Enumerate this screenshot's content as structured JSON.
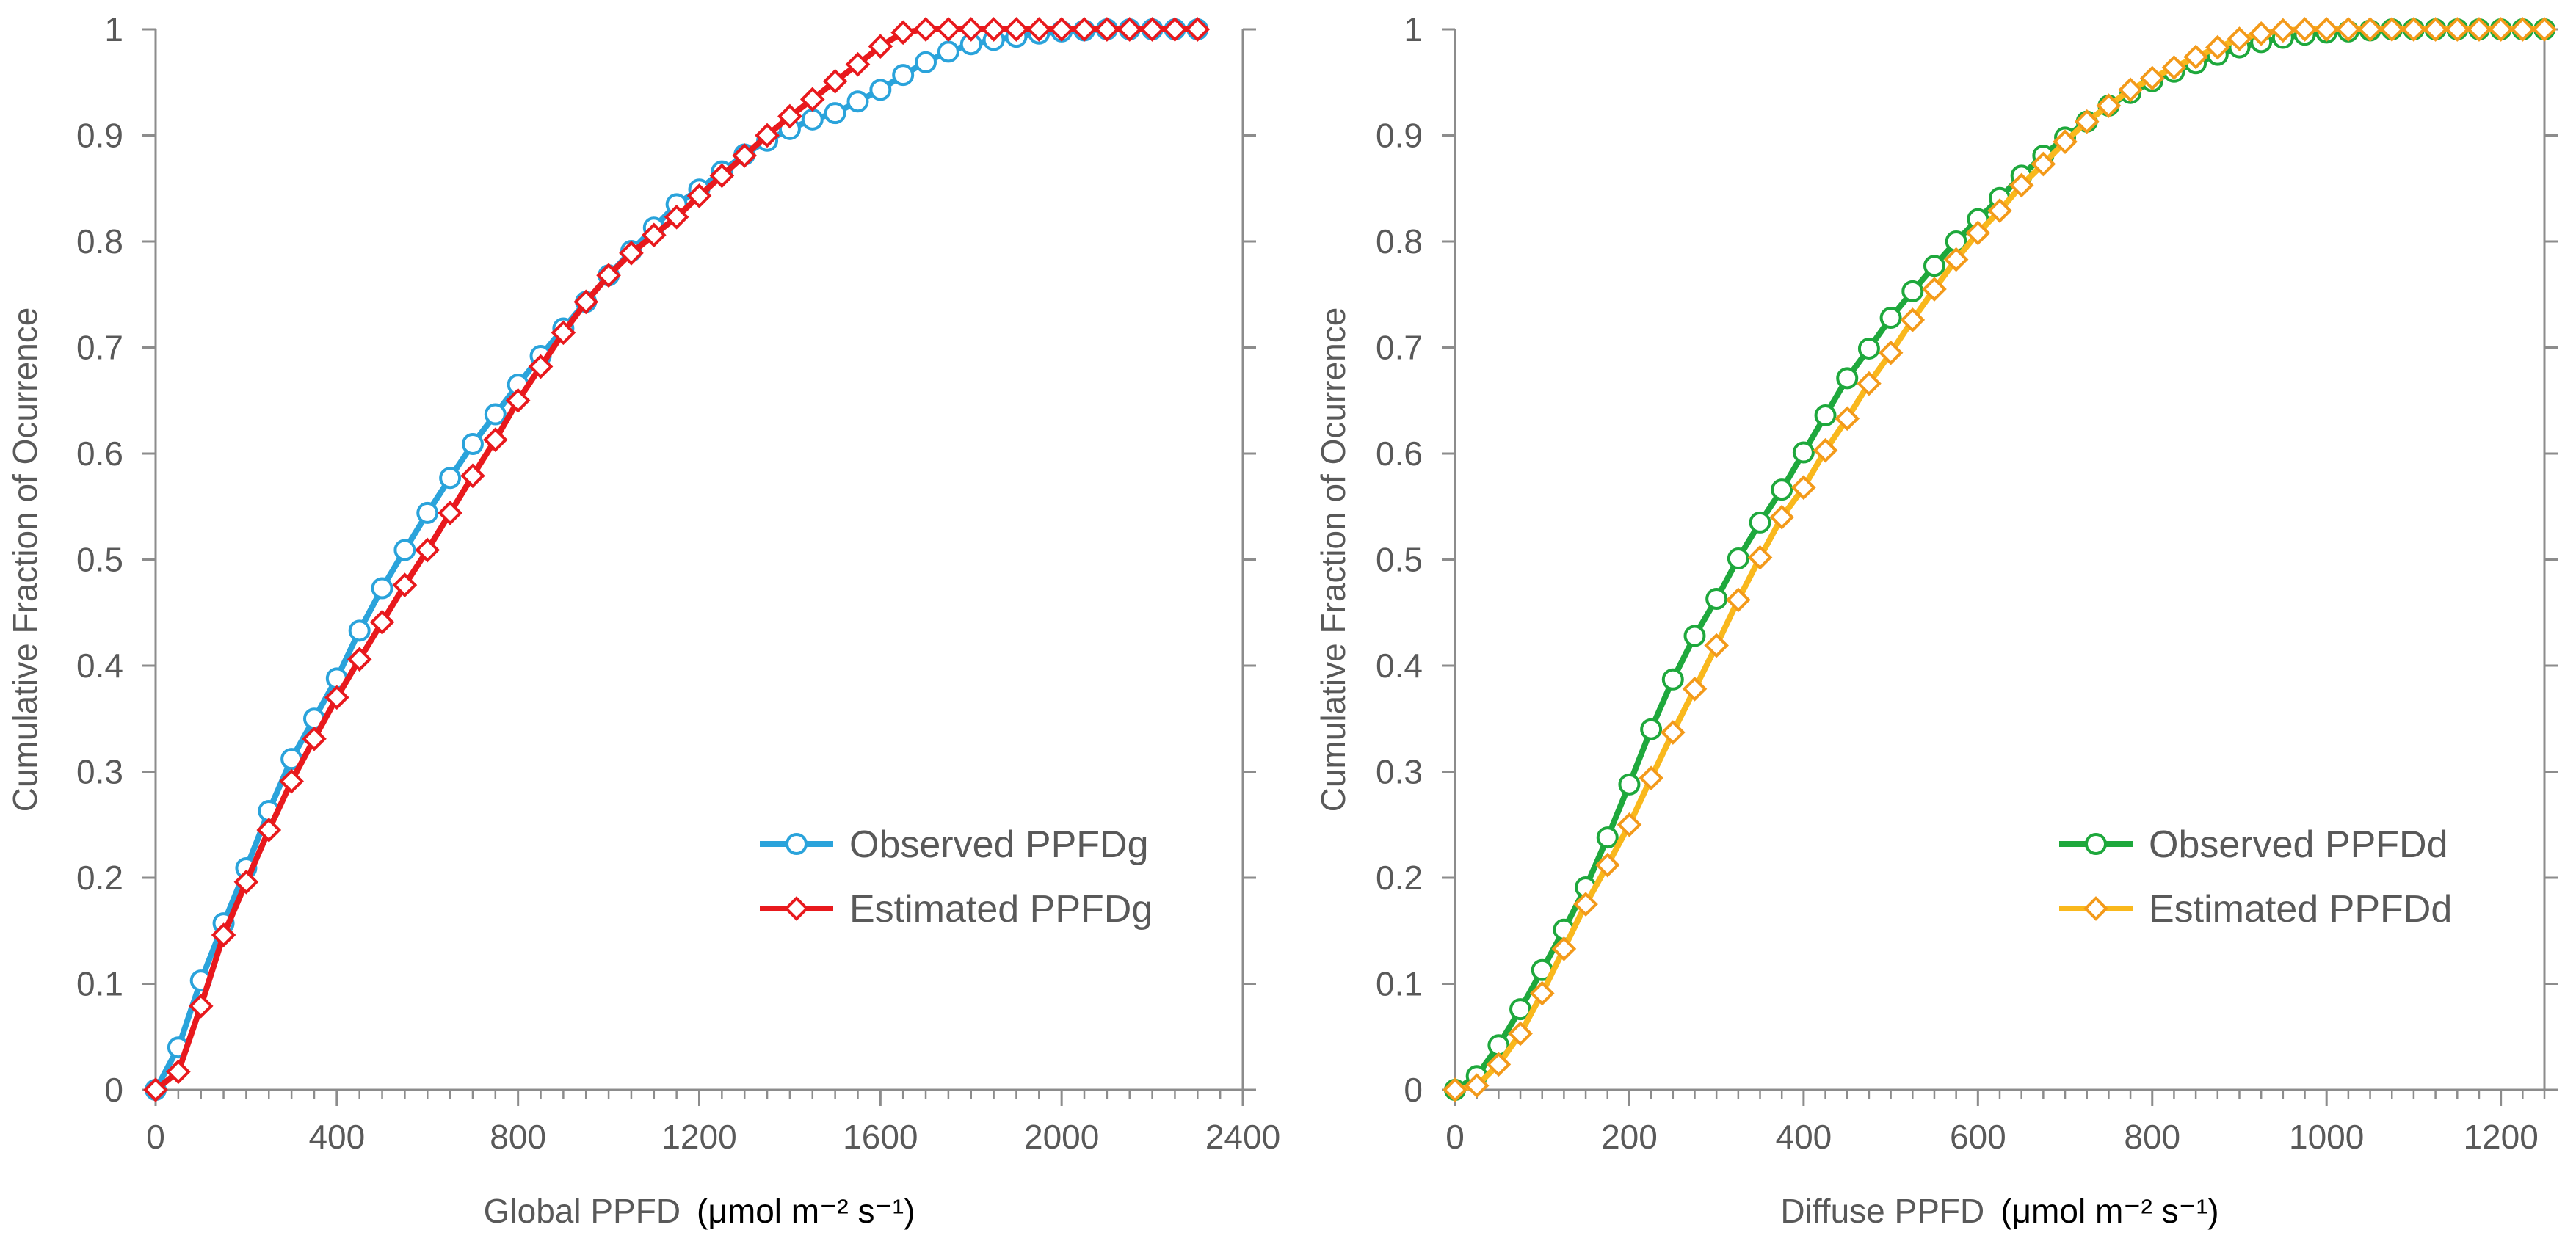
{
  "chart_data": [
    {
      "type": "line",
      "xlabel": "Global PPFD",
      "xunit": "(μmol m⁻² s⁻¹)",
      "ylabel": "Cumulative Fraction of Ocurrence",
      "xlim": [
        0,
        2400
      ],
      "ylim": [
        0,
        1
      ],
      "xticks": [
        0,
        400,
        800,
        1200,
        1600,
        2000,
        2400
      ],
      "yticks": [
        0,
        0.1,
        0.2,
        0.3,
        0.4,
        0.5,
        0.6,
        0.7,
        0.8,
        0.9,
        1
      ],
      "ytick_labels": [
        "0",
        "0.1",
        "0.2",
        "0.3",
        "0.4",
        "0.5",
        "0.6",
        "0.7",
        "0.8",
        "0.9",
        "1"
      ],
      "legend_position": "bottom-right",
      "series": [
        {
          "name": "Observed PPFDg",
          "color": "#2AA3DB",
          "marker": "circle",
          "x": [
            0,
            50,
            100,
            150,
            200,
            250,
            300,
            350,
            400,
            450,
            500,
            550,
            600,
            650,
            700,
            750,
            800,
            850,
            900,
            950,
            1000,
            1050,
            1100,
            1150,
            1200,
            1250,
            1300,
            1350,
            1400,
            1450,
            1500,
            1550,
            1600,
            1650,
            1700,
            1750,
            1800,
            1850,
            1900,
            1950,
            2000,
            2050,
            2100,
            2150,
            2200,
            2250,
            2300
          ],
          "y": [
            0,
            0.04,
            0.103,
            0.157,
            0.209,
            0.263,
            0.312,
            0.35,
            0.388,
            0.433,
            0.473,
            0.509,
            0.544,
            0.577,
            0.609,
            0.637,
            0.665,
            0.692,
            0.718,
            0.743,
            0.768,
            0.791,
            0.813,
            0.835,
            0.849,
            0.866,
            0.882,
            0.895,
            0.906,
            0.915,
            0.921,
            0.932,
            0.943,
            0.957,
            0.969,
            0.979,
            0.986,
            0.99,
            0.993,
            0.996,
            0.998,
            0.999,
            1,
            1,
            1,
            1,
            1
          ]
        },
        {
          "name": "Estimated PPFDg",
          "color": "#E8191D",
          "marker": "diamond",
          "x": [
            0,
            50,
            100,
            150,
            200,
            250,
            300,
            350,
            400,
            450,
            500,
            550,
            600,
            650,
            700,
            750,
            800,
            850,
            900,
            950,
            1000,
            1050,
            1100,
            1150,
            1200,
            1250,
            1300,
            1350,
            1400,
            1450,
            1500,
            1550,
            1600,
            1650,
            1700,
            1750,
            1800,
            1850,
            1900,
            1950,
            2000,
            2050,
            2100,
            2150,
            2200,
            2250,
            2300
          ],
          "y": [
            0,
            0.017,
            0.079,
            0.146,
            0.196,
            0.245,
            0.291,
            0.331,
            0.37,
            0.406,
            0.441,
            0.476,
            0.509,
            0.544,
            0.579,
            0.613,
            0.65,
            0.682,
            0.714,
            0.743,
            0.768,
            0.789,
            0.806,
            0.823,
            0.843,
            0.862,
            0.881,
            0.9,
            0.918,
            0.934,
            0.951,
            0.967,
            0.984,
            0.997,
            1,
            1,
            1,
            1,
            1,
            1,
            1,
            1,
            1,
            1,
            1,
            1,
            1
          ]
        }
      ]
    },
    {
      "type": "line",
      "xlabel": "Diffuse PPFD",
      "xunit": "(μmol m⁻² s⁻¹)",
      "ylabel": "Cumulative Fraction of Ocurrence",
      "xlim": [
        0,
        1250
      ],
      "ylim": [
        0,
        1
      ],
      "xticks": [
        0,
        200,
        400,
        600,
        800,
        1000,
        1200
      ],
      "yticks": [
        0,
        0.1,
        0.2,
        0.3,
        0.4,
        0.5,
        0.6,
        0.7,
        0.8,
        0.9,
        1
      ],
      "ytick_labels": [
        "0",
        "0.1",
        "0.2",
        "0.3",
        "0.4",
        "0.5",
        "0.6",
        "0.7",
        "0.8",
        "0.9",
        "1"
      ],
      "legend_position": "bottom-right",
      "series": [
        {
          "name": "Observed PPFDd",
          "color": "#1EA83C",
          "marker": "circle",
          "x": [
            0,
            25,
            50,
            75,
            100,
            125,
            150,
            175,
            200,
            225,
            250,
            275,
            300,
            325,
            350,
            375,
            400,
            425,
            450,
            475,
            500,
            525,
            550,
            575,
            600,
            625,
            650,
            675,
            700,
            725,
            750,
            775,
            800,
            825,
            850,
            875,
            900,
            925,
            950,
            975,
            1000,
            1025,
            1050,
            1075,
            1100,
            1125,
            1150,
            1175,
            1200,
            1225,
            1250
          ],
          "y": [
            0,
            0.013,
            0.042,
            0.076,
            0.113,
            0.151,
            0.191,
            0.238,
            0.288,
            0.34,
            0.387,
            0.428,
            0.463,
            0.501,
            0.535,
            0.566,
            0.601,
            0.636,
            0.671,
            0.699,
            0.728,
            0.753,
            0.777,
            0.8,
            0.821,
            0.841,
            0.862,
            0.881,
            0.898,
            0.913,
            0.928,
            0.94,
            0.951,
            0.96,
            0.968,
            0.976,
            0.983,
            0.988,
            0.992,
            0.995,
            0.997,
            0.998,
            0.999,
            1,
            1,
            1,
            1,
            1,
            1,
            1,
            1
          ]
        },
        {
          "name": "Estimated PPFDd",
          "color": "#F9B81C",
          "marker": "diamond",
          "marker_color": "#F39A1A",
          "x": [
            0,
            25,
            50,
            75,
            100,
            125,
            150,
            175,
            200,
            225,
            250,
            275,
            300,
            325,
            350,
            375,
            400,
            425,
            450,
            475,
            500,
            525,
            550,
            575,
            600,
            625,
            650,
            675,
            700,
            725,
            750,
            775,
            800,
            825,
            850,
            875,
            900,
            925,
            950,
            975,
            1000,
            1025,
            1050,
            1075,
            1100,
            1125,
            1150,
            1175,
            1200,
            1225,
            1250
          ],
          "y": [
            0,
            0.004,
            0.024,
            0.053,
            0.091,
            0.133,
            0.175,
            0.212,
            0.25,
            0.294,
            0.337,
            0.378,
            0.419,
            0.462,
            0.502,
            0.54,
            0.568,
            0.603,
            0.633,
            0.666,
            0.695,
            0.726,
            0.755,
            0.783,
            0.808,
            0.829,
            0.853,
            0.873,
            0.894,
            0.913,
            0.928,
            0.943,
            0.954,
            0.964,
            0.974,
            0.983,
            0.991,
            0.996,
            0.999,
            1,
            1,
            1,
            1,
            1,
            1,
            1,
            1,
            1,
            1,
            1,
            1
          ]
        }
      ]
    }
  ]
}
